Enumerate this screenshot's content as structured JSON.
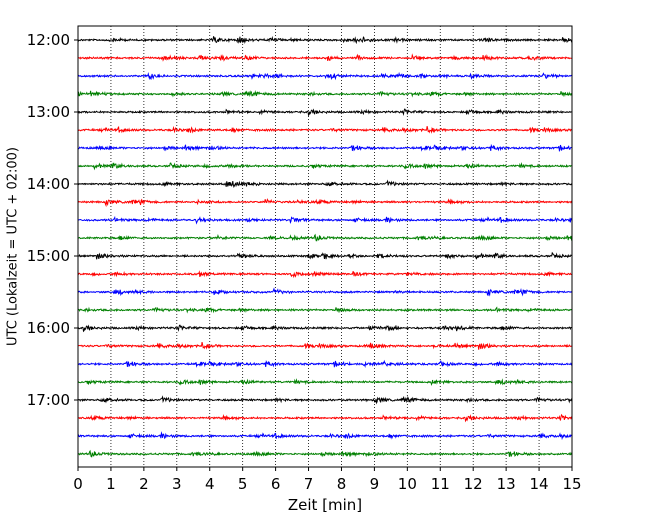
{
  "chart_data": {
    "type": "line",
    "title": "",
    "xlabel": "Zeit  [min]",
    "ylabel": "UTC (Lokalzeit = UTC + 02:00)",
    "xlim": [
      0,
      15
    ],
    "x_ticks": [
      "0",
      "1",
      "2",
      "3",
      "4",
      "5",
      "6",
      "7",
      "8",
      "9",
      "10",
      "11",
      "12",
      "13",
      "14",
      "15"
    ],
    "y_ticks": [
      "12:00",
      "13:00",
      "14:00",
      "15:00",
      "16:00",
      "17:00"
    ],
    "trace_interval_min": 15,
    "trace_count": 24,
    "start_time": "12:00",
    "colors": [
      "#000000",
      "#ff0000",
      "#0000ff",
      "#008000"
    ],
    "grid_x": "dotted",
    "legend": "none"
  }
}
